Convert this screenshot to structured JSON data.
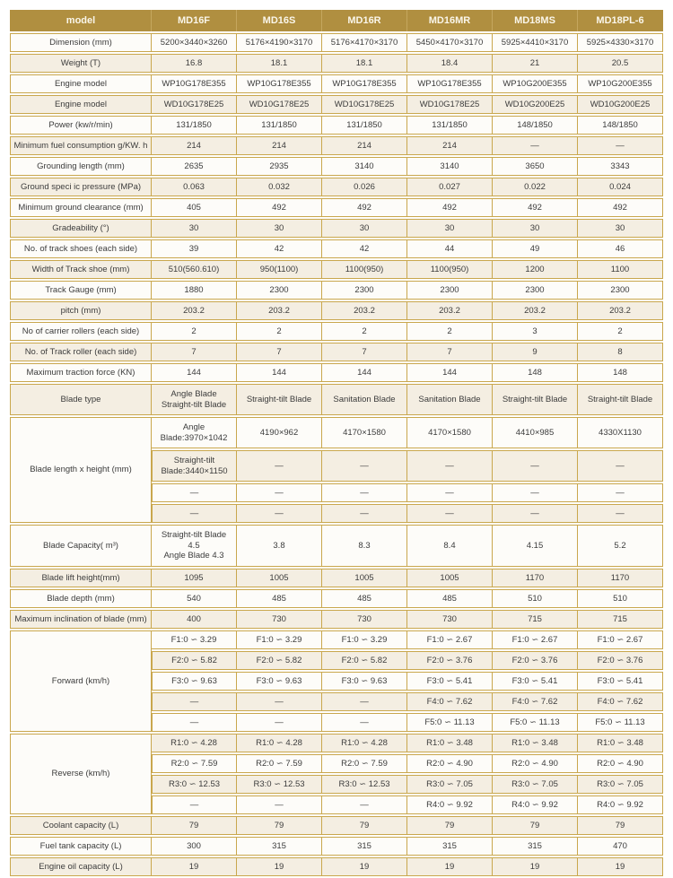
{
  "colors": {
    "header_bg": "#b08f40",
    "header_text": "#faf6ea",
    "border_gold": "#c9a74d",
    "row_beige": "#f4eee2",
    "row_white": "#fdfcf9",
    "text": "#3c3c3c"
  },
  "table": {
    "header_label": "model",
    "models": [
      "MD16F",
      "MD16S",
      "MD16R",
      "MD16MR",
      "MD18MS",
      "MD18PL-6"
    ],
    "rows": [
      {
        "label": "Dimension (mm)",
        "values": [
          "5200×3440×3260",
          "5176×4190×3170",
          "5176×4170×3170",
          "5450×4170×3170",
          "5925×4410×3170",
          "5925×4330×3170"
        ]
      },
      {
        "label": "Weight (T)",
        "values": [
          "16.8",
          "18.1",
          "18.1",
          "18.4",
          "21",
          "20.5"
        ]
      },
      {
        "label": "Engine model",
        "values": [
          "WP10G178E355",
          "WP10G178E355",
          "WP10G178E355",
          "WP10G178E355",
          "WP10G200E355",
          "WP10G200E355"
        ]
      },
      {
        "label": "Engine model",
        "values": [
          "WD10G178E25",
          "WD10G178E25",
          "WD10G178E25",
          "WD10G178E25",
          "WD10G200E25",
          "WD10G200E25"
        ]
      },
      {
        "label": "Power (kw/r/min)",
        "values": [
          "131/1850",
          "131/1850",
          "131/1850",
          "131/1850",
          "148/1850",
          "148/1850"
        ]
      },
      {
        "label": "Minimum fuel consumption g/KW. h",
        "values": [
          "214",
          "214",
          "214",
          "214",
          "—",
          "—"
        ]
      },
      {
        "label": "Grounding length (mm)",
        "values": [
          "2635",
          "2935",
          "3140",
          "3140",
          "3650",
          "3343"
        ]
      },
      {
        "label": "Ground speci ic pressure (MPa)",
        "values": [
          "0.063",
          "0.032",
          "0.026",
          "0.027",
          "0.022",
          "0.024"
        ]
      },
      {
        "label": "Minimum ground clearance (mm)",
        "values": [
          "405",
          "492",
          "492",
          "492",
          "492",
          "492"
        ]
      },
      {
        "label": "Gradeability (°)",
        "values": [
          "30",
          "30",
          "30",
          "30",
          "30",
          "30"
        ]
      },
      {
        "label": "No. of track shoes (each side)",
        "values": [
          "39",
          "42",
          "42",
          "44",
          "49",
          "46"
        ]
      },
      {
        "label": "Width of Track shoe  (mm)",
        "values": [
          "510(560.610)",
          "950(1100)",
          "1100(950)",
          "1100(950)",
          "1200",
          "1100"
        ]
      },
      {
        "label": "Track Gauge (mm)",
        "values": [
          "1880",
          "2300",
          "2300",
          "2300",
          "2300",
          "2300"
        ]
      },
      {
        "label": "pitch (mm)",
        "values": [
          "203.2",
          "203.2",
          "203.2",
          "203.2",
          "203.2",
          "203.2"
        ]
      },
      {
        "label": "No of carrier rollers (each side)",
        "values": [
          "2",
          "2",
          "2",
          "2",
          "3",
          "2"
        ]
      },
      {
        "label": "No. of Track roller (each side)",
        "values": [
          "7",
          "7",
          "7",
          "7",
          "9",
          "8"
        ]
      },
      {
        "label": "Maximum traction force (KN)",
        "values": [
          "144",
          "144",
          "144",
          "144",
          "148",
          "148"
        ]
      },
      {
        "label": "Blade type",
        "h": "tall2",
        "values": [
          "Angle Blade\nStraight-tilt Blade",
          "Straight-tilt Blade",
          "Sanitation Blade",
          "Sanitation Blade",
          "Straight-tilt Blade",
          "Straight-tilt Blade"
        ]
      },
      {
        "label": "Blade length x height (mm)",
        "subheights": [
          "tall2",
          "tall2",
          "normal",
          "normal"
        ],
        "subrows": [
          [
            "Angle\nBlade:3970×1042",
            "4190×962",
            "4170×1580",
            "4170×1580",
            "4410×985",
            "4330X1130"
          ],
          [
            "Straight-tilt\nBlade:3440×1150",
            "—",
            "—",
            "—",
            "—",
            "—"
          ],
          [
            "—",
            "—",
            "—",
            "—",
            "—",
            "—"
          ],
          [
            "—",
            "—",
            "—",
            "—",
            "—",
            "—"
          ]
        ]
      },
      {
        "label": "Blade Capacity( m³)",
        "h": "tall3",
        "values": [
          "Straight-tilt Blade\n4.5\nAngle Blade 4.3",
          "3.8",
          "8.3",
          "8.4",
          "4.15",
          "5.2"
        ]
      },
      {
        "label": "Blade lift height(mm)",
        "values": [
          "1095",
          "1005",
          "1005",
          "1005",
          "1170",
          "1170"
        ]
      },
      {
        "label": "Blade depth (mm)",
        "values": [
          "540",
          "485",
          "485",
          "485",
          "510",
          "510"
        ]
      },
      {
        "label": "Maximum inclination of blade (mm)",
        "values": [
          "400",
          "730",
          "730",
          "730",
          "715",
          "715"
        ]
      },
      {
        "label": "Forward (km/h)",
        "subrows": [
          [
            "F1:0 ∽ 3.29",
            "F1:0 ∽ 3.29",
            "F1:0 ∽ 3.29",
            "F1:0 ∽ 2.67",
            "F1:0 ∽ 2.67",
            "F1:0 ∽ 2.67"
          ],
          [
            "F2:0 ∽ 5.82",
            "F2:0 ∽ 5.82",
            "F2:0 ∽ 5.82",
            "F2:0 ∽ 3.76",
            "F2:0 ∽ 3.76",
            "F2:0 ∽ 3.76"
          ],
          [
            "F3:0 ∽ 9.63",
            "F3:0 ∽ 9.63",
            "F3:0 ∽ 9.63",
            "F3:0 ∽ 5.41",
            "F3:0 ∽ 5.41",
            "F3:0 ∽ 5.41"
          ],
          [
            "—",
            "—",
            "—",
            "F4:0 ∽ 7.62",
            "F4:0 ∽ 7.62",
            "F4:0 ∽ 7.62"
          ],
          [
            "—",
            "—",
            "—",
            "F5:0 ∽ 11.13",
            "F5:0 ∽ 11.13",
            "F5:0 ∽ 11.13"
          ]
        ]
      },
      {
        "label": "Reverse (km/h)",
        "subrows": [
          [
            "R1:0 ∽ 4.28",
            "R1:0 ∽ 4.28",
            "R1:0 ∽ 4.28",
            "R1:0 ∽ 3.48",
            "R1:0 ∽ 3.48",
            "R1:0 ∽ 3.48"
          ],
          [
            "R2:0 ∽ 7.59",
            "R2:0 ∽ 7.59",
            "R2:0 ∽ 7.59",
            "R2:0 ∽ 4.90",
            "R2:0 ∽ 4.90",
            "R2:0 ∽ 4.90"
          ],
          [
            "R3:0 ∽ 12.53",
            "R3:0 ∽ 12.53",
            "R3:0 ∽ 12.53",
            "R3:0 ∽ 7.05",
            "R3:0 ∽ 7.05",
            "R3:0 ∽ 7.05"
          ],
          [
            "—",
            "—",
            "—",
            "R4:0 ∽ 9.92",
            "R4:0 ∽ 9.92",
            "R4:0 ∽ 9.92"
          ]
        ]
      },
      {
        "label": "Coolant capacity (L)",
        "values": [
          "79",
          "79",
          "79",
          "79",
          "79",
          "79"
        ]
      },
      {
        "label": "Fuel tank capacity (L)",
        "values": [
          "300",
          "315",
          "315",
          "315",
          "315",
          "470"
        ]
      },
      {
        "label": "Engine oil capacity (L)",
        "values": [
          "19",
          "19",
          "19",
          "19",
          "19",
          "19"
        ]
      }
    ]
  }
}
